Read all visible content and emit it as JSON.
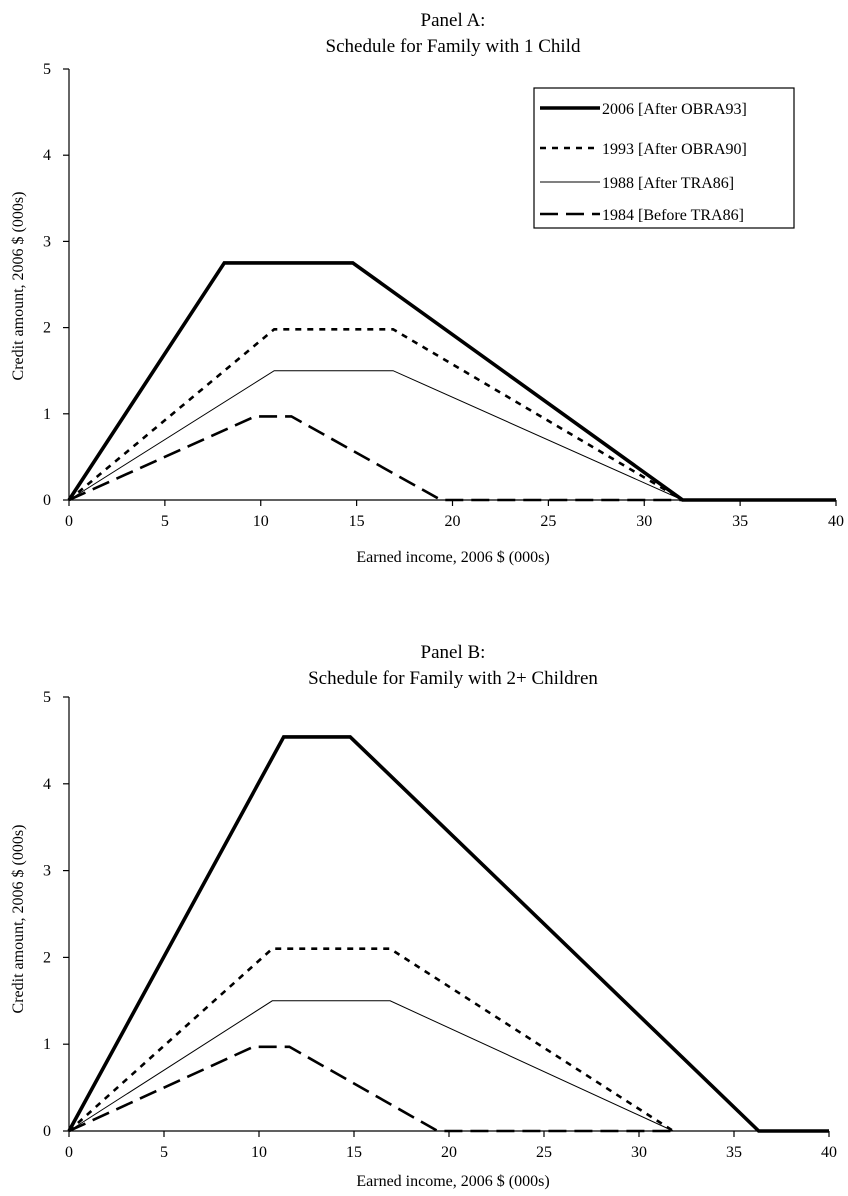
{
  "chart_data": [
    {
      "type": "line",
      "title_line1": "Panel A:",
      "title_line2": "Schedule for Family with 1 Child",
      "xlabel": "Earned income, 2006 $ (000s)",
      "ylabel": "Credit amount, 2006 $ (000s)",
      "xlim": [
        0,
        40
      ],
      "ylim": [
        0,
        5
      ],
      "xticks": [
        "0",
        "5",
        "10",
        "15",
        "20",
        "25",
        "30",
        "35",
        "40"
      ],
      "yticks": [
        "0",
        "1",
        "2",
        "3",
        "4",
        "5"
      ],
      "grid": false,
      "legend": {
        "placement": "top-right",
        "entries": [
          "2006 [After OBRA93]",
          "1993 [After OBRA90]",
          "1988 [After TRA86]",
          "1984 [Before TRA86]"
        ]
      },
      "series": [
        {
          "name": "2006 [After OBRA93]",
          "style": "thick-solid",
          "points": [
            [
              0,
              0
            ],
            [
              8.1,
              2.75
            ],
            [
              14.8,
              2.75
            ],
            [
              32.0,
              0
            ],
            [
              40,
              0
            ]
          ]
        },
        {
          "name": "1993 [After OBRA90]",
          "style": "dotted",
          "points": [
            [
              0,
              0
            ],
            [
              10.7,
              1.98
            ],
            [
              16.9,
              1.98
            ],
            [
              32.0,
              0
            ]
          ]
        },
        {
          "name": "1988 [After TRA86]",
          "style": "thin-solid",
          "points": [
            [
              0,
              0
            ],
            [
              10.7,
              1.5
            ],
            [
              16.9,
              1.5
            ],
            [
              32.0,
              0
            ]
          ]
        },
        {
          "name": "1984 [Before TRA86]",
          "style": "dashed",
          "points": [
            [
              0,
              0
            ],
            [
              9.7,
              0.97
            ],
            [
              11.6,
              0.97
            ],
            [
              19.4,
              0
            ],
            [
              32.0,
              0
            ]
          ]
        }
      ]
    },
    {
      "type": "line",
      "title_line1": "Panel B:",
      "title_line2": "Schedule for Family with 2+ Children",
      "xlabel": "Earned income, 2006 $ (000s)",
      "ylabel": "Credit amount, 2006 $ (000s)",
      "xlim": [
        0,
        40
      ],
      "ylim": [
        0,
        5
      ],
      "xticks": [
        "0",
        "5",
        "10",
        "15",
        "20",
        "25",
        "30",
        "35",
        "40"
      ],
      "yticks": [
        "0",
        "1",
        "2",
        "3",
        "4",
        "5"
      ],
      "grid": false,
      "series": [
        {
          "name": "2006 [After OBRA93]",
          "style": "thick-solid",
          "points": [
            [
              0,
              0
            ],
            [
              11.3,
              4.54
            ],
            [
              14.8,
              4.54
            ],
            [
              36.3,
              0
            ],
            [
              40,
              0
            ]
          ]
        },
        {
          "name": "1993 [After OBRA90]",
          "style": "dotted",
          "points": [
            [
              0,
              0
            ],
            [
              10.7,
              2.1
            ],
            [
              16.9,
              2.1
            ],
            [
              31.8,
              0
            ]
          ]
        },
        {
          "name": "1988 [After TRA86]",
          "style": "thin-solid",
          "points": [
            [
              0,
              0
            ],
            [
              10.7,
              1.5
            ],
            [
              16.9,
              1.5
            ],
            [
              31.8,
              0
            ]
          ]
        },
        {
          "name": "1984 [Before TRA86]",
          "style": "dashed",
          "points": [
            [
              0,
              0
            ],
            [
              9.7,
              0.97
            ],
            [
              11.6,
              0.97
            ],
            [
              19.4,
              0
            ],
            [
              31.8,
              0
            ]
          ]
        }
      ]
    }
  ]
}
